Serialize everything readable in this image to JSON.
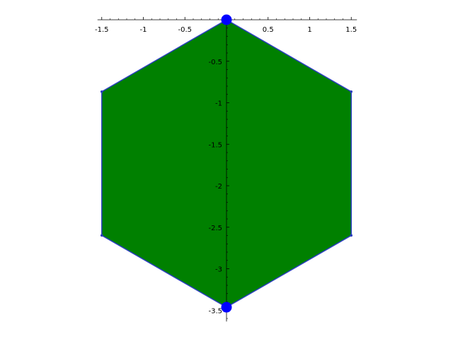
{
  "chart_data": {
    "type": "polygon",
    "title": "",
    "xlabel": "",
    "ylabel": "",
    "xlim": [
      -1.5,
      1.5
    ],
    "ylim": [
      -3.5,
      0
    ],
    "grid": false,
    "x_ticks": [
      {
        "value": -1.5,
        "label": "-1.5"
      },
      {
        "value": -1.0,
        "label": "-1"
      },
      {
        "value": -0.5,
        "label": "-0.5"
      },
      {
        "value": 0.5,
        "label": "0.5"
      },
      {
        "value": 1.0,
        "label": "1"
      },
      {
        "value": 1.5,
        "label": "1.5"
      }
    ],
    "y_ticks": [
      {
        "value": -0.5,
        "label": "-0.5"
      },
      {
        "value": -1.0,
        "label": "-1"
      },
      {
        "value": -1.5,
        "label": "-1.5"
      },
      {
        "value": -2.0,
        "label": "-2"
      },
      {
        "value": -2.5,
        "label": "-2.5"
      },
      {
        "value": -3.0,
        "label": "-3"
      },
      {
        "value": -3.5,
        "label": "-3.5"
      }
    ],
    "polygon": {
      "fill": "#008000",
      "edge": "#2b3fbf",
      "vertices": [
        {
          "x": 0.0,
          "y": 0.0
        },
        {
          "x": 1.5,
          "y": -0.866
        },
        {
          "x": 1.5,
          "y": -2.598
        },
        {
          "x": 0.0,
          "y": -3.464
        },
        {
          "x": -1.5,
          "y": -2.598
        },
        {
          "x": -1.5,
          "y": -0.866
        }
      ]
    },
    "highlight_points": {
      "color": "#0000ff",
      "points": [
        {
          "x": 0.0,
          "y": 0.0
        },
        {
          "x": 0.0,
          "y": -3.464
        }
      ]
    }
  }
}
